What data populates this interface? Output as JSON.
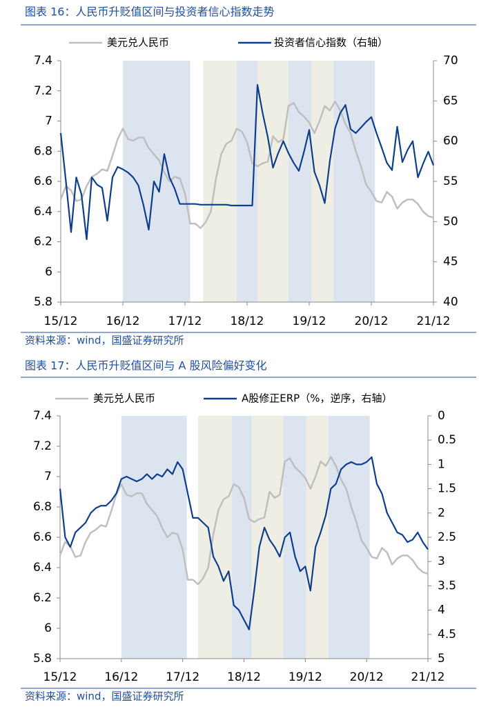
{
  "chart_data": [
    {
      "type": "line",
      "title": "图表 16：人民币升贬值区间与投资者信心指数走势",
      "source": "资料来源：wind，国盛证券研究所",
      "categories": [
        "15/12",
        null,
        null,
        null,
        null,
        null,
        null,
        null,
        null,
        null,
        null,
        null,
        "16/12",
        null,
        null,
        null,
        null,
        null,
        null,
        null,
        null,
        null,
        null,
        null,
        "17/12",
        null,
        null,
        null,
        null,
        null,
        null,
        null,
        null,
        null,
        null,
        null,
        "18/12",
        null,
        null,
        null,
        null,
        null,
        null,
        null,
        null,
        null,
        null,
        null,
        "19/12",
        null,
        null,
        null,
        null,
        null,
        null,
        null,
        null,
        null,
        null,
        null,
        "20/12",
        null,
        null,
        null,
        null,
        null,
        null,
        null,
        null,
        null,
        null,
        null,
        "21/12"
      ],
      "ylim": [
        5.8,
        7.4
      ],
      "yticks": [
        5.8,
        6,
        6.2,
        6.4,
        6.6,
        6.8,
        7,
        7.2,
        7.4
      ],
      "y2lim": [
        40,
        70
      ],
      "y2ticks": [
        40,
        45,
        50,
        55,
        60,
        65,
        70
      ],
      "shaded_periods": [
        {
          "start": 12,
          "end": 25,
          "color": "#dce4f0"
        },
        {
          "start": 27.5,
          "end": 34,
          "color": "#efeee5"
        },
        {
          "start": 34,
          "end": 38,
          "color": "#dce4f0"
        },
        {
          "start": 38,
          "end": 44,
          "color": "#efeee5"
        },
        {
          "start": 44,
          "end": 48.4,
          "color": "#dce4f0"
        },
        {
          "start": 48.4,
          "end": 52.7,
          "color": "#efeee5"
        },
        {
          "start": 52.7,
          "end": 60.7,
          "color": "#dce4f0"
        }
      ],
      "series": [
        {
          "name": "美元兑人民币",
          "color": "#bfbfbf",
          "values": [
            6.48,
            6.57,
            6.54,
            6.47,
            6.48,
            6.57,
            6.63,
            6.65,
            6.68,
            6.67,
            6.77,
            6.88,
            6.95,
            6.88,
            6.87,
            6.89,
            6.89,
            6.82,
            6.78,
            6.74,
            6.66,
            6.6,
            6.63,
            6.62,
            6.52,
            6.32,
            6.32,
            6.29,
            6.33,
            6.4,
            6.62,
            6.78,
            6.85,
            6.87,
            6.95,
            6.93,
            6.86,
            6.72,
            6.7,
            6.72,
            6.73,
            6.9,
            6.86,
            6.88,
            7.1,
            7.12,
            7.06,
            7.03,
            6.99,
            6.92,
            7.0,
            7.1,
            7.07,
            7.13,
            7.07,
            6.98,
            6.92,
            6.8,
            6.7,
            6.58,
            6.53,
            6.47,
            6.46,
            6.53,
            6.5,
            6.42,
            6.46,
            6.48,
            6.48,
            6.45,
            6.4,
            6.37,
            6.36
          ]
        },
        {
          "name": "投资者信心指数（右轴）",
          "color": "#0e3d8b",
          "axis": "y2",
          "values": [
            61,
            55,
            48.7,
            55.5,
            53.4,
            47.8,
            55.5,
            54.6,
            54.2,
            50.1,
            55.5,
            56.8,
            56.5,
            56.1,
            55.5,
            54.5,
            52,
            49,
            55,
            53.7,
            58.4,
            55.5,
            54.1,
            52.2,
            52.2,
            52.2,
            52.2,
            52.1,
            52.1,
            52.1,
            52.1,
            52.1,
            52.1,
            52.0,
            52.0,
            52.0,
            52.0,
            52.0,
            67,
            63.5,
            60.5,
            56.7,
            58.5,
            60,
            58.5,
            57.3,
            56.3,
            58.7,
            61.4,
            56.2,
            54.5,
            52.3,
            57.6,
            61.6,
            63.5,
            64.5,
            61.5,
            61,
            61.7,
            62.4,
            63,
            61,
            59.2,
            57.3,
            56.4,
            61.8,
            57.4,
            58.9,
            60,
            55.5,
            57.2,
            58.7,
            57
          ]
        }
      ]
    },
    {
      "type": "line",
      "title": "图表 17：人民币升贬值区间与 A 股风险偏好变化",
      "source": "资料来源：wind，国盛证券研究所",
      "categories": [
        "15/12",
        null,
        null,
        null,
        null,
        null,
        null,
        null,
        null,
        null,
        null,
        null,
        "16/12",
        null,
        null,
        null,
        null,
        null,
        null,
        null,
        null,
        null,
        null,
        null,
        "17/12",
        null,
        null,
        null,
        null,
        null,
        null,
        null,
        null,
        null,
        null,
        null,
        "18/12",
        null,
        null,
        null,
        null,
        null,
        null,
        null,
        null,
        null,
        null,
        null,
        "19/12",
        null,
        null,
        null,
        null,
        null,
        null,
        null,
        null,
        null,
        null,
        null,
        "20/12",
        null,
        null,
        null,
        null,
        null,
        null,
        null,
        null,
        null,
        null,
        null,
        "21/12"
      ],
      "ylim": [
        5.8,
        7.4
      ],
      "yticks": [
        5.8,
        6,
        6.2,
        6.4,
        6.6,
        6.8,
        7,
        7.2,
        7.4
      ],
      "y2lim": [
        0,
        5
      ],
      "y2_reversed": true,
      "y2ticks": [
        0,
        0.5,
        1,
        1.5,
        2,
        2.5,
        3,
        3.5,
        4,
        4.5,
        5
      ],
      "shaded_periods": [
        {
          "start": 12,
          "end": 24.8,
          "color": "#dce4f0"
        },
        {
          "start": 27,
          "end": 33.6,
          "color": "#efeee5"
        },
        {
          "start": 33.6,
          "end": 37.5,
          "color": "#dce4f0"
        },
        {
          "start": 37.5,
          "end": 43.7,
          "color": "#efeee5"
        },
        {
          "start": 43.7,
          "end": 48.2,
          "color": "#dce4f0"
        },
        {
          "start": 48.2,
          "end": 52.5,
          "color": "#efeee5"
        },
        {
          "start": 52.5,
          "end": 60.6,
          "color": "#dce4f0"
        }
      ],
      "series": [
        {
          "name": "美元兑人民币",
          "color": "#bfbfbf",
          "values": [
            6.48,
            6.57,
            6.54,
            6.47,
            6.48,
            6.57,
            6.63,
            6.65,
            6.68,
            6.67,
            6.77,
            6.88,
            6.95,
            6.88,
            6.87,
            6.89,
            6.89,
            6.82,
            6.78,
            6.74,
            6.66,
            6.6,
            6.63,
            6.62,
            6.52,
            6.32,
            6.32,
            6.29,
            6.33,
            6.4,
            6.62,
            6.78,
            6.85,
            6.87,
            6.95,
            6.93,
            6.86,
            6.72,
            6.7,
            6.72,
            6.73,
            6.9,
            6.86,
            6.88,
            7.1,
            7.12,
            7.06,
            7.03,
            6.99,
            6.92,
            7.0,
            7.1,
            7.07,
            7.13,
            7.07,
            6.98,
            6.92,
            6.8,
            6.7,
            6.58,
            6.53,
            6.47,
            6.46,
            6.53,
            6.5,
            6.42,
            6.46,
            6.48,
            6.48,
            6.45,
            6.4,
            6.37,
            6.36
          ]
        },
        {
          "name": "A股修正ERP（%，逆序，右轴）",
          "color": "#0e3d8b",
          "axis": "y2",
          "values": [
            1.5,
            2.5,
            2.7,
            2.4,
            2.3,
            2.2,
            2.0,
            1.9,
            1.85,
            1.85,
            1.75,
            1.6,
            1.3,
            1.25,
            1.3,
            1.35,
            1.3,
            1.2,
            1.3,
            1.2,
            1.25,
            1.1,
            1.2,
            0.95,
            1.1,
            1.6,
            2.1,
            2.1,
            2.2,
            2.3,
            2.9,
            3.1,
            3.4,
            3.2,
            3.9,
            4.0,
            4.2,
            4.4,
            3.6,
            2.7,
            2.3,
            2.55,
            2.7,
            2.9,
            2.5,
            2.4,
            2.9,
            3.2,
            3.1,
            3.6,
            2.7,
            2.4,
            2.05,
            1.5,
            1.4,
            1.1,
            1.0,
            0.95,
            1.0,
            1.0,
            0.95,
            0.85,
            1.4,
            1.6,
            2.0,
            2.2,
            2.4,
            2.45,
            2.6,
            2.55,
            2.4,
            2.6,
            2.75
          ]
        }
      ]
    }
  ]
}
